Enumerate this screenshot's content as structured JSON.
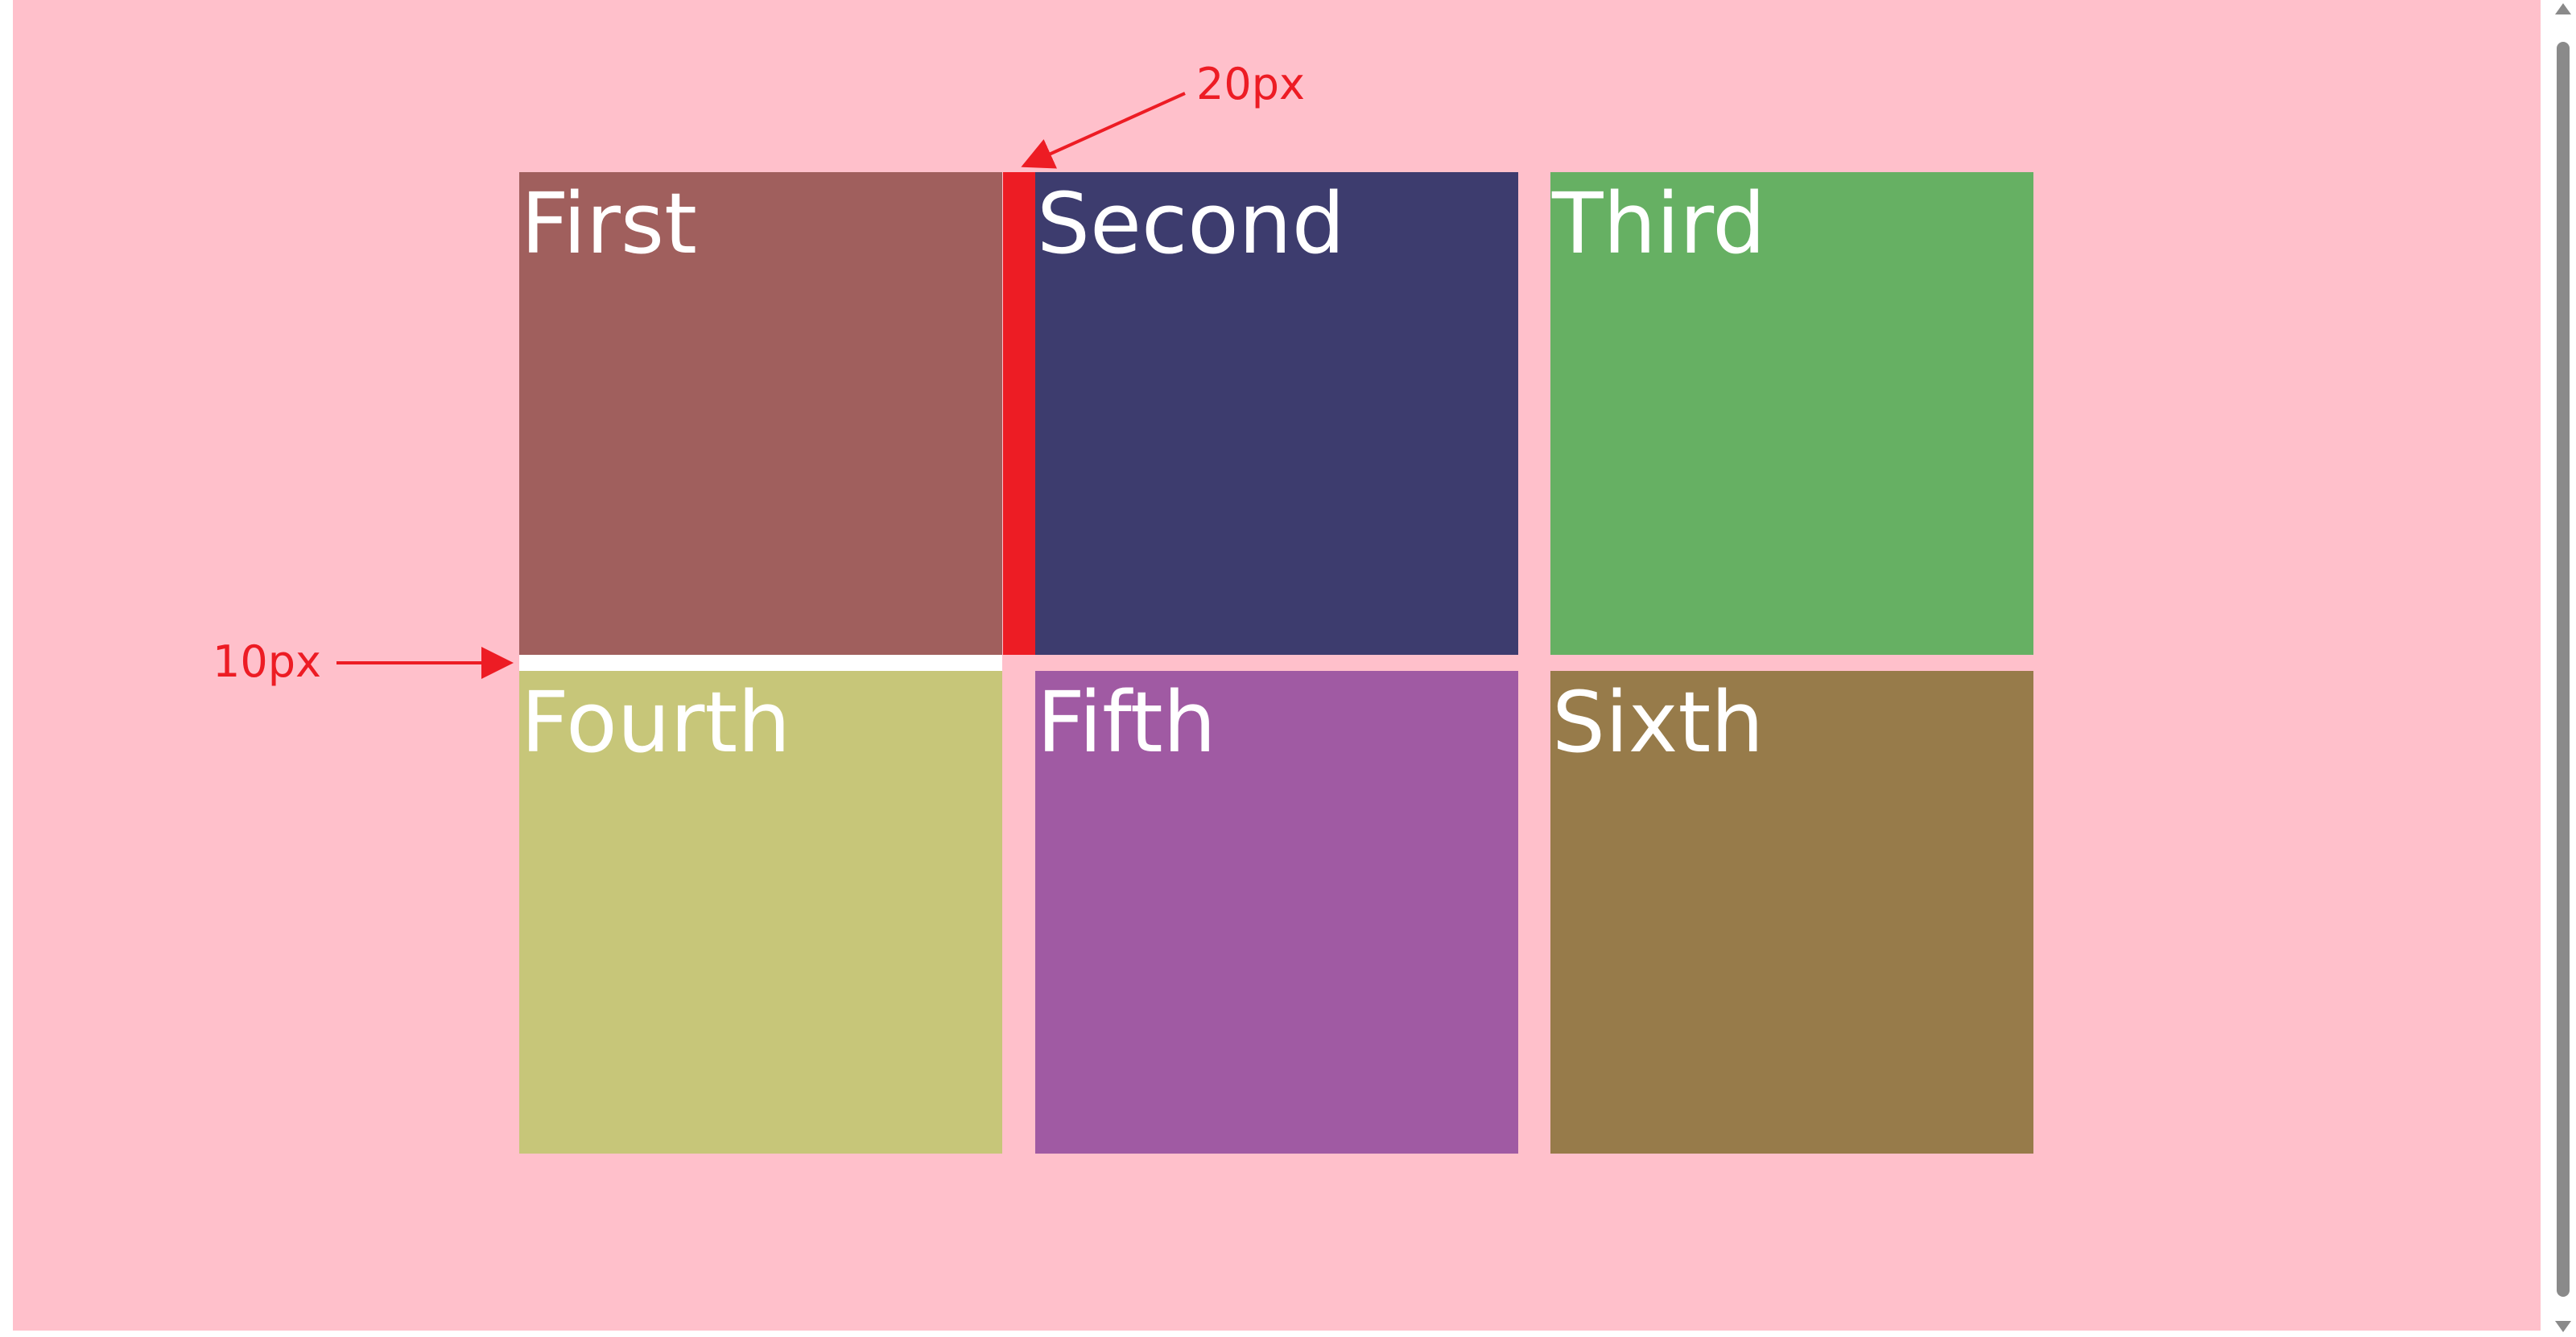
{
  "colors": {
    "page_background": "#ffc0cb",
    "annotation": "#ed1c24",
    "label_text": "#ffffff",
    "row_gap_highlight": "#ffffff",
    "column_gap_highlight": "#ed1c24"
  },
  "grid": {
    "cells": [
      {
        "label": "First",
        "color": "#a05f5d"
      },
      {
        "label": "Second",
        "color": "#3d3c6e"
      },
      {
        "label": "Third",
        "color": "#66b063"
      },
      {
        "label": "Fourth",
        "color": "#c7c679"
      },
      {
        "label": "Fifth",
        "color": "#a05aa3"
      },
      {
        "label": "Sixth",
        "color": "#977b4a"
      }
    ]
  },
  "annotations": {
    "column_gap_label": "20px",
    "row_gap_label": "10px"
  },
  "scrollbar": {
    "up_icon": "triangle-up",
    "down_icon": "triangle-down"
  }
}
